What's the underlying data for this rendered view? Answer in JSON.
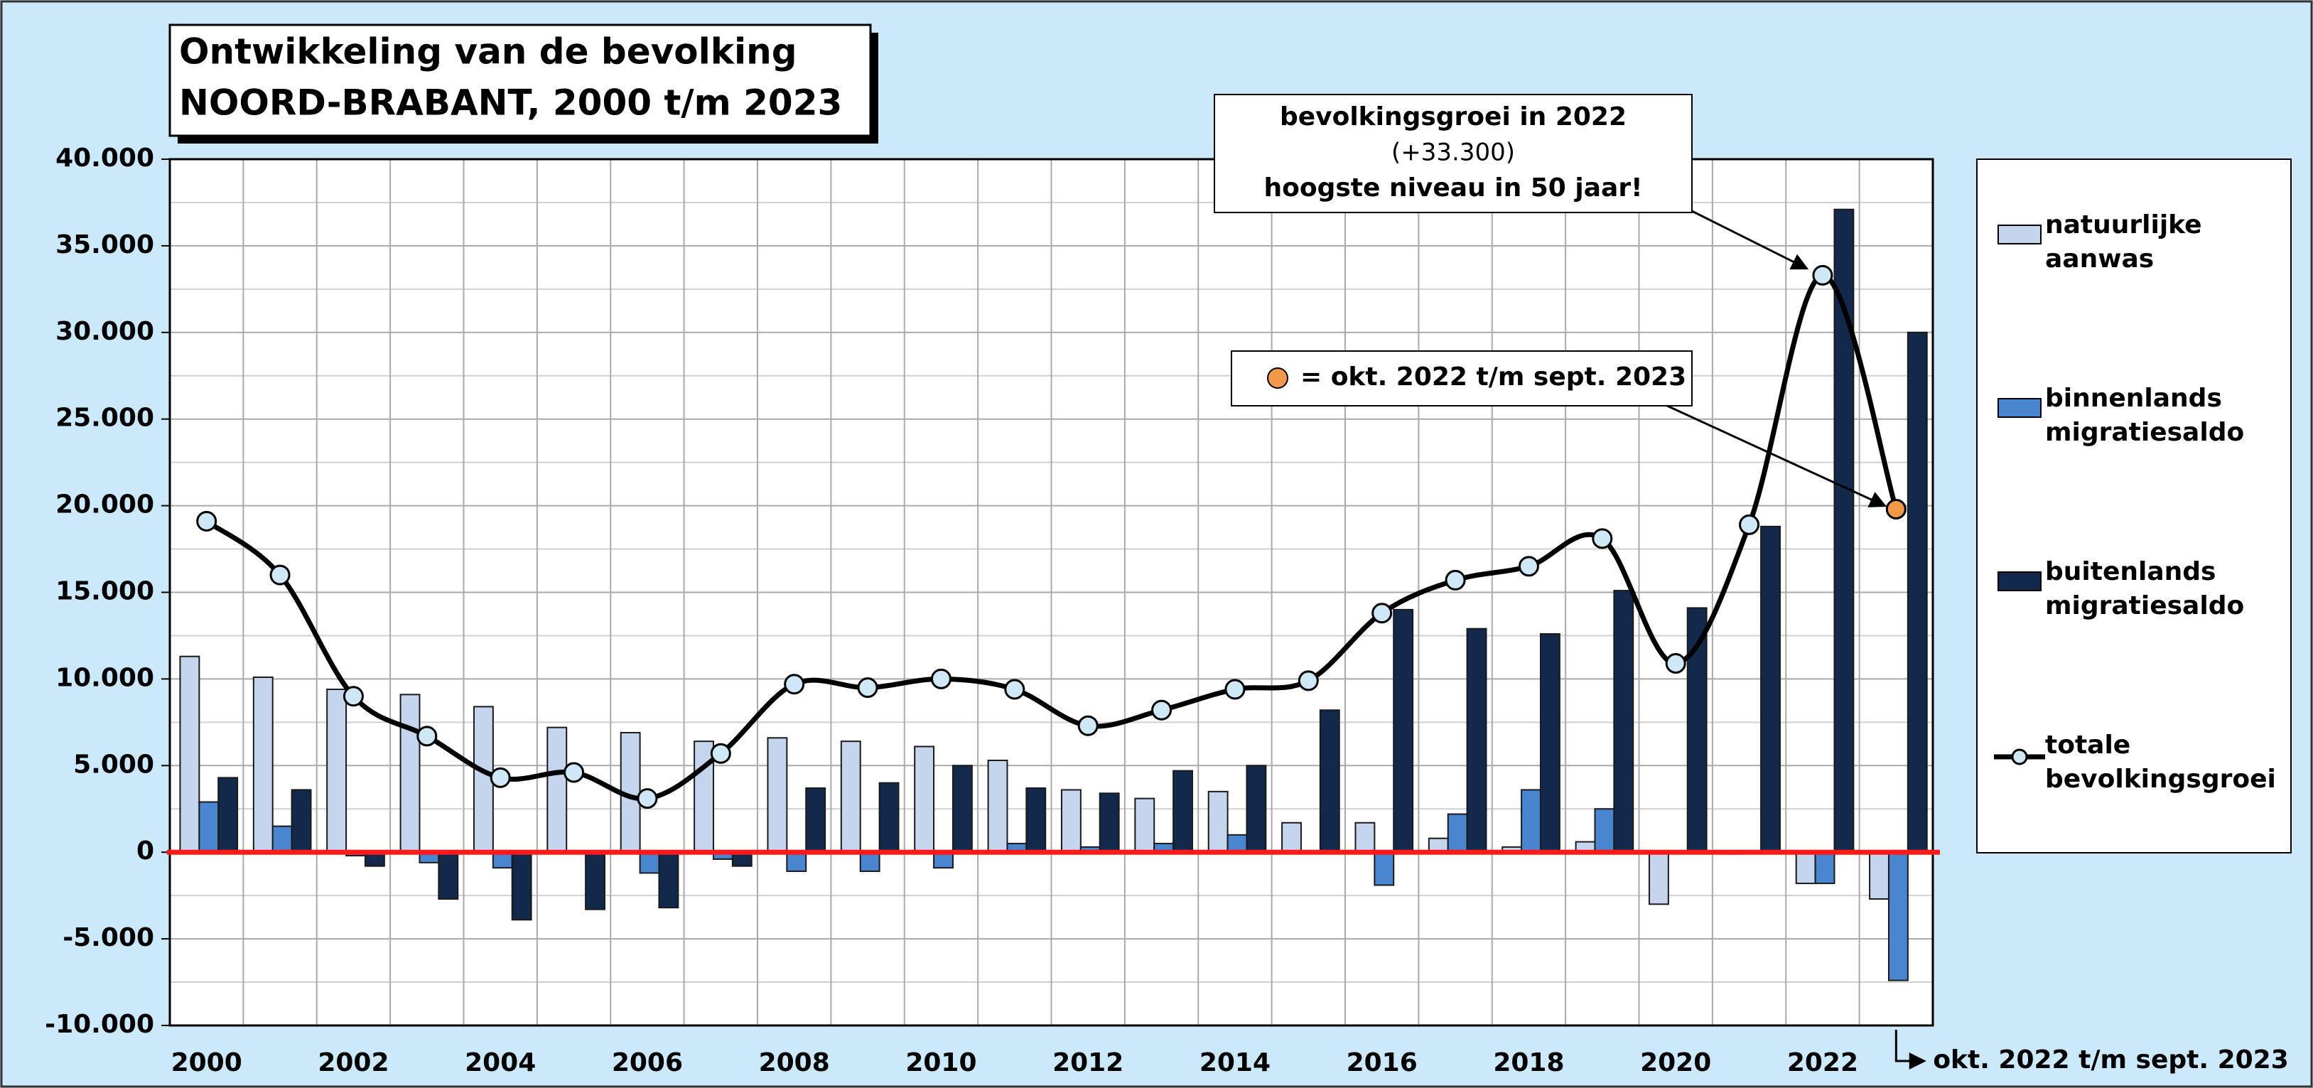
{
  "chart_data": {
    "type": "bar",
    "title": "Ontwikkeling van de bevolking",
    "subtitle": "NOORD-BRABANT,  2000 t/m 2023",
    "categories": [
      "2000",
      null,
      "2002",
      null,
      "2004",
      null,
      "2006",
      null,
      "2008",
      null,
      "2010",
      null,
      "2012",
      null,
      "2014",
      null,
      "2016",
      null,
      "2018",
      null,
      "2020",
      null,
      "2022",
      null
    ],
    "series": [
      {
        "name": "natuurlijke aanwas",
        "type": "bar",
        "color": "#c6d5ee",
        "values": [
          11300,
          10100,
          9400,
          9100,
          8400,
          7200,
          6900,
          6400,
          6600,
          6400,
          6100,
          5300,
          3600,
          3100,
          3500,
          1700,
          1700,
          800,
          300,
          600,
          -3000,
          -100,
          -1800,
          -2700
        ]
      },
      {
        "name": "binnenlands migratiesaldo",
        "type": "bar",
        "color": "#4a86d0",
        "values": [
          2900,
          1500,
          -200,
          -600,
          -900,
          0,
          -1200,
          -400,
          -1100,
          -1100,
          -900,
          500,
          300,
          500,
          1000,
          0,
          -1900,
          2200,
          3600,
          2500,
          0,
          0,
          -1800,
          -7400
        ]
      },
      {
        "name": "buitenlands migratiesaldo",
        "type": "bar",
        "color": "#13294b",
        "values": [
          4300,
          3600,
          -800,
          -2700,
          -3900,
          -3300,
          -3200,
          -800,
          3700,
          4000,
          5000,
          3700,
          3400,
          4700,
          5000,
          8200,
          14000,
          12900,
          12600,
          15100,
          14100,
          18800,
          37100,
          30000
        ]
      },
      {
        "name": "totale bevolkingsgroei",
        "type": "line",
        "color": "#000000",
        "marker_color": "#cfe8f7",
        "values": [
          19100,
          16000,
          9000,
          6700,
          4300,
          4600,
          3100,
          5700,
          9700,
          9500,
          10000,
          9400,
          7300,
          8200,
          9400,
          9900,
          13800,
          15700,
          16500,
          18100,
          10900,
          18900,
          33300,
          19800
        ]
      }
    ],
    "highlight_color": "#f39a4a",
    "ylim": [
      -10000,
      40000
    ],
    "yticks": [
      {
        "value": -10000,
        "label": "-10.000"
      },
      {
        "value": -5000,
        "label": "-5.000"
      },
      0,
      {
        "value": 5000,
        "label": "5.000"
      },
      {
        "value": 10000,
        "label": "10.000"
      },
      {
        "value": 15000,
        "label": "15.000"
      },
      {
        "value": 20000,
        "label": "20.000"
      },
      {
        "value": 25000,
        "label": "25.000"
      },
      {
        "value": 30000,
        "label": "30.000"
      },
      {
        "value": 35000,
        "label": "35.000"
      },
      {
        "value": 40000,
        "label": "40.000"
      }
    ],
    "grid": true,
    "legend": "right",
    "annotations": [
      {
        "lines": [
          "bevolkingsgroei in 2022",
          "(+33.300)",
          "hoogste niveau in 50 jaar!"
        ]
      },
      {
        "text": "= okt. 2022 t/m sept. 2023"
      },
      {
        "text": "okt. 2022 t/m sept. 2023"
      }
    ]
  }
}
